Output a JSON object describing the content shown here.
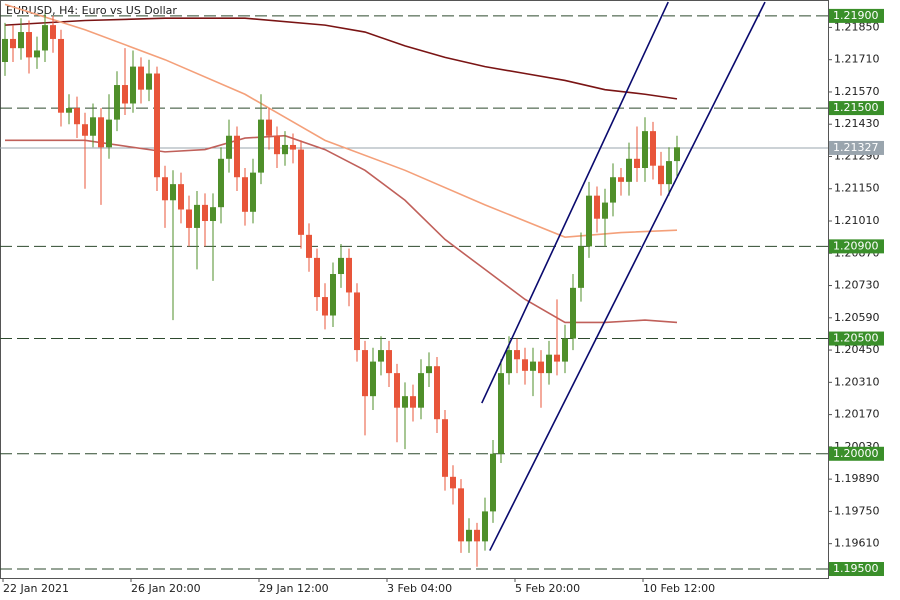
{
  "chart_data": {
    "type": "candlestick",
    "title": "EURUSD, H4:  Euro vs US Dollar",
    "categories": [
      "22 Jan 2021",
      null,
      null,
      null,
      null,
      null,
      null,
      null,
      null,
      null,
      null,
      null,
      null,
      null,
      null,
      null,
      "26 Jan 20:00",
      null,
      null,
      null,
      null,
      null,
      null,
      null,
      null,
      null,
      null,
      null,
      null,
      null,
      null,
      null,
      "29 Jan 12:00",
      null,
      null,
      null,
      null,
      null,
      null,
      null,
      null,
      null,
      null,
      null,
      null,
      null,
      null,
      null,
      "3 Feb 04:00",
      null,
      null,
      null,
      null,
      null,
      null,
      null,
      null,
      null,
      null,
      null,
      null,
      null,
      null,
      null,
      "5 Feb 20:00",
      null,
      null,
      null,
      null,
      null,
      null,
      null,
      null,
      null,
      null,
      null,
      null,
      null,
      null,
      null,
      "10 Feb 12:00",
      null,
      null,
      null,
      null
    ],
    "open": [
      1.217,
      1.218,
      1.2176,
      1.2183,
      1.2172,
      1.2175,
      1.2186,
      1.218,
      1.2148,
      1.215,
      1.2143,
      1.2138,
      1.2146,
      1.2133,
      1.2145,
      1.216,
      1.2152,
      1.2168,
      1.2158,
      1.2165,
      1.212,
      1.211,
      1.2117,
      1.2106,
      1.2098,
      1.2108,
      1.2101,
      1.2107,
      1.2128,
      1.2138,
      1.212,
      1.2105,
      1.2122,
      1.2145,
      1.2138,
      1.213,
      1.2134,
      1.2132,
      1.2095,
      1.2085,
      1.2068,
      1.206,
      1.2078,
      1.2085,
      1.207,
      1.2045,
      1.2025,
      1.204,
      1.2045,
      1.2035,
      1.202,
      1.2025,
      1.202,
      1.2035,
      1.2038,
      1.2015,
      1.199,
      1.1985,
      1.1962,
      1.1967,
      1.1962,
      1.1975,
      1.2,
      1.2035,
      1.2045,
      1.2041,
      1.2036,
      1.204,
      1.2035,
      1.2043,
      1.204,
      1.205,
      1.2072,
      1.209,
      1.2112,
      1.2102,
      1.2109,
      1.212,
      1.2118,
      1.2128,
      1.2124,
      1.214,
      1.2125,
      1.2117,
      1.2127
    ],
    "high": [
      1.2187,
      1.2186,
      1.2189,
      1.2188,
      1.2181,
      1.2191,
      1.219,
      1.2184,
      1.2156,
      1.2155,
      1.2148,
      1.2152,
      1.215,
      1.2156,
      1.2166,
      1.2176,
      1.2175,
      1.2172,
      1.2171,
      1.2168,
      1.2125,
      1.2123,
      1.2122,
      1.2112,
      1.2114,
      1.2113,
      1.2113,
      1.2133,
      1.2145,
      1.2142,
      1.2124,
      1.2128,
      1.2156,
      1.215,
      1.2142,
      1.214,
      1.2139,
      1.2136,
      1.21,
      1.2089,
      1.2074,
      1.2083,
      1.2091,
      1.2089,
      1.2074,
      1.2049,
      1.2046,
      1.2051,
      1.2049,
      1.2039,
      1.2031,
      1.203,
      1.2041,
      1.2044,
      1.2042,
      1.2019,
      1.1995,
      1.1989,
      1.1972,
      1.197,
      1.1981,
      1.2006,
      1.2041,
      1.2051,
      1.205,
      1.2046,
      1.2046,
      1.2045,
      1.2049,
      1.2067,
      1.2056,
      1.2078,
      1.2096,
      1.2118,
      1.2116,
      1.2115,
      1.2126,
      1.2124,
      1.2135,
      1.2142,
      1.2146,
      1.2144,
      1.2131,
      1.2133,
      1.2138
    ],
    "low": [
      1.2164,
      1.217,
      1.2171,
      1.2165,
      1.2167,
      1.217,
      1.2174,
      1.2142,
      1.2143,
      1.2137,
      1.2115,
      1.2133,
      1.2108,
      1.2128,
      1.214,
      1.2147,
      1.2148,
      1.2152,
      1.2153,
      1.2114,
      1.2098,
      1.2058,
      1.21,
      1.209,
      1.208,
      1.209,
      1.2075,
      1.21,
      1.2122,
      1.2114,
      1.2099,
      1.21,
      1.2117,
      1.2132,
      1.2124,
      1.2125,
      1.2126,
      1.2089,
      1.2079,
      1.2062,
      1.2054,
      1.2055,
      1.2072,
      1.2064,
      1.204,
      1.2008,
      1.2019,
      1.2034,
      1.2029,
      1.2005,
      1.2002,
      1.2014,
      1.2015,
      1.2029,
      1.2009,
      1.1984,
      1.1978,
      1.1957,
      1.1957,
      1.1951,
      1.1958,
      1.197,
      1.1996,
      1.203,
      1.2035,
      1.203,
      1.2025,
      1.202,
      1.203,
      1.2034,
      1.2035,
      1.2045,
      1.2066,
      1.2085,
      1.2096,
      1.209,
      1.2103,
      1.2112,
      1.2112,
      1.2118,
      1.2118,
      1.2119,
      1.2112,
      1.2112,
      1.212
    ],
    "close": [
      1.218,
      1.2176,
      1.2183,
      1.2172,
      1.2175,
      1.2186,
      1.218,
      1.2148,
      1.215,
      1.2143,
      1.2138,
      1.2146,
      1.2133,
      1.2145,
      1.216,
      1.2152,
      1.2168,
      1.2158,
      1.2165,
      1.212,
      1.211,
      1.2117,
      1.2106,
      1.2098,
      1.2108,
      1.2101,
      1.2107,
      1.2128,
      1.2138,
      1.212,
      1.2105,
      1.2122,
      1.2145,
      1.2138,
      1.213,
      1.2134,
      1.2132,
      1.2095,
      1.2085,
      1.2068,
      1.206,
      1.2078,
      1.2085,
      1.207,
      1.2045,
      1.2025,
      1.204,
      1.2045,
      1.2035,
      1.202,
      1.2025,
      1.202,
      1.2035,
      1.2038,
      1.2015,
      1.199,
      1.1985,
      1.1962,
      1.1967,
      1.1962,
      1.1975,
      1.2,
      1.2035,
      1.2045,
      1.2041,
      1.2036,
      1.204,
      1.2035,
      1.2043,
      1.204,
      1.205,
      1.2072,
      1.209,
      1.2112,
      1.2102,
      1.2109,
      1.212,
      1.2118,
      1.2128,
      1.2124,
      1.214,
      1.2125,
      1.2117,
      1.2127,
      1.2133
    ],
    "up_color": "#4f8f2a",
    "down_color": "#e8553a",
    "lines": [
      {
        "color": "#7a1414",
        "x": [
          0,
          10,
          20,
          30,
          40,
          45,
          50,
          55,
          60,
          65,
          70,
          75,
          80,
          84
        ],
        "values": [
          1.2186,
          1.2188,
          1.2189,
          1.2189,
          1.2186,
          1.2183,
          1.2177,
          1.2172,
          1.2168,
          1.2165,
          1.2162,
          1.2158,
          1.2156,
          1.2154
        ]
      },
      {
        "color": "#f4a07a",
        "x": [
          0,
          10,
          20,
          30,
          40,
          50,
          60,
          70,
          77,
          84
        ],
        "values": [
          1.2195,
          1.2184,
          1.2171,
          1.2156,
          1.2136,
          1.2123,
          1.2108,
          1.2094,
          1.2096,
          1.2097
        ]
      },
      {
        "color": "#c0605a",
        "x": [
          0,
          10,
          20,
          25,
          30,
          35,
          40,
          45,
          50,
          55,
          60,
          65,
          70,
          75,
          80,
          84
        ],
        "values": [
          1.2136,
          1.2136,
          1.2131,
          1.2132,
          1.2137,
          1.2138,
          1.2132,
          1.2123,
          1.211,
          1.2093,
          1.208,
          1.2067,
          1.2057,
          1.2057,
          1.2058,
          1.2057
        ]
      }
    ],
    "channels": [
      {
        "color": "#0a0a6e",
        "x": [
          59.6,
          82.9
        ],
        "values": [
          1.2022,
          1.2196
        ]
      },
      {
        "color": "#0a0a6e",
        "x": [
          60.6,
          95
        ],
        "values": [
          1.1958,
          1.2196
        ]
      }
    ],
    "levels": [
      {
        "value": 1.219,
        "label": "1.21900"
      },
      {
        "value": 1.215,
        "label": "1.21500"
      },
      {
        "value": 1.209,
        "label": "1.20900"
      },
      {
        "value": 1.205,
        "label": "1.20500"
      },
      {
        "value": 1.2,
        "label": "1.20000"
      },
      {
        "value": 1.195,
        "label": "1.19500"
      }
    ],
    "level_color": "#3a8f2a",
    "current_price": {
      "value": 1.21327,
      "label": "1.21327"
    },
    "ylim": [
      1.19461,
      1.21969
    ],
    "yticks": [
      {
        "value": 1.2185,
        "label": "1.21850"
      },
      {
        "value": 1.2171,
        "label": "1.21710"
      },
      {
        "value": 1.2157,
        "label": "1.21570"
      },
      {
        "value": 1.2143,
        "label": "1.21430"
      },
      {
        "value": 1.2129,
        "label": "1.21290"
      },
      {
        "value": 1.2115,
        "label": "1.21150"
      },
      {
        "value": 1.2101,
        "label": "1.21010"
      },
      {
        "value": 1.2087,
        "label": "1.20870"
      },
      {
        "value": 1.2073,
        "label": "1.20730"
      },
      {
        "value": 1.2059,
        "label": "1.20590"
      },
      {
        "value": 1.2045,
        "label": "1.20450"
      },
      {
        "value": 1.2031,
        "label": "1.20310"
      },
      {
        "value": 1.2017,
        "label": "1.20170"
      },
      {
        "value": 1.2003,
        "label": "1.20030"
      },
      {
        "value": 1.1989,
        "label": "1.19890"
      },
      {
        "value": 1.1975,
        "label": "1.19750"
      },
      {
        "value": 1.1961,
        "label": "1.19610"
      }
    ]
  }
}
